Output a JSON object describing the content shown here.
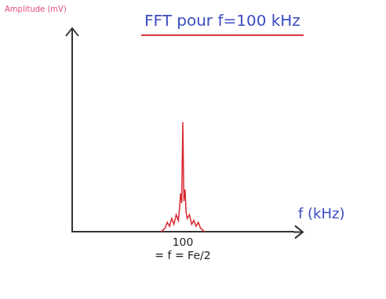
{
  "chart_data": {
    "type": "line",
    "title": "FFT pour f=100 kHz",
    "x_label": "f (kHz)",
    "y_label": "Amplitude (mV)",
    "x": [
      80,
      84,
      86,
      88,
      90,
      92,
      94,
      96,
      97,
      98,
      99,
      100,
      101,
      102,
      103,
      104,
      106,
      108,
      110,
      112,
      114,
      116,
      120
    ],
    "values": [
      0,
      0.2,
      0.5,
      0.3,
      0.7,
      0.4,
      0.9,
      0.6,
      1.2,
      2.0,
      1.5,
      5.7,
      1.6,
      2.2,
      1.0,
      0.7,
      0.9,
      0.4,
      0.6,
      0.3,
      0.5,
      0.2,
      0
    ],
    "color": "#d8262e",
    "xlim": [
      0,
      200
    ],
    "xticks": [
      100
    ],
    "ylim": [
      0,
      10
    ],
    "yticks": [],
    "annotation": {
      "x": 100,
      "text": "= f = Fe/2"
    },
    "grid": false,
    "tick_labels": "x"
  }
}
